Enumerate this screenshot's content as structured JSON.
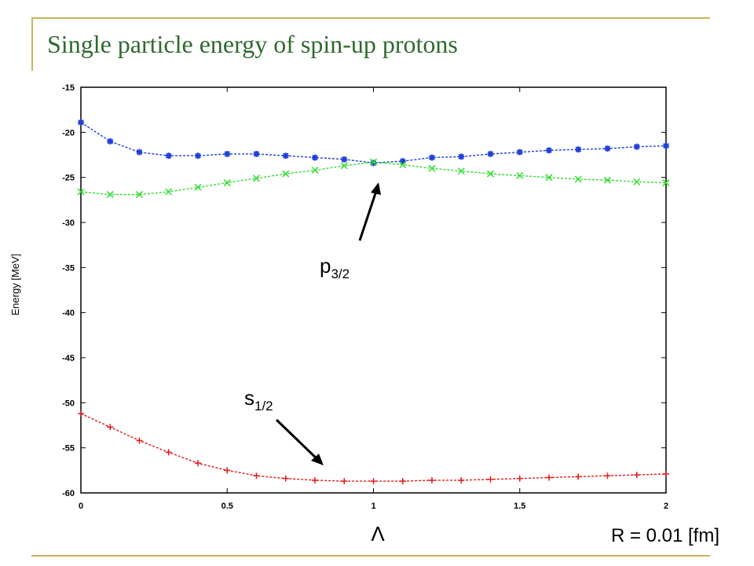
{
  "slide": {
    "title": "Single particle energy of spin-up protons",
    "r_label": "R = 0.01 [fm]"
  },
  "colors": {
    "rule": "#c9b458",
    "title": "#2e6a2e",
    "s_half": "#e41a1c",
    "p_blue": "#1f3fdc",
    "p_green": "#33dd33"
  },
  "chart_data": {
    "type": "line",
    "xlabel": "Λ",
    "ylabel": "Energy [MeV]",
    "xlim": [
      0,
      2
    ],
    "ylim": [
      -60,
      -15
    ],
    "xticks": [
      "0",
      "0.5",
      "1",
      "1.5",
      "2"
    ],
    "yticks": [
      "-15",
      "-20",
      "-25",
      "-30",
      "-35",
      "-40",
      "-45",
      "-50",
      "-55",
      "-60"
    ],
    "grid": false,
    "legend": "none",
    "x": [
      0,
      0.1,
      0.2,
      0.3,
      0.4,
      0.5,
      0.6,
      0.7,
      0.8,
      0.9,
      1.0,
      1.1,
      1.2,
      1.3,
      1.4,
      1.5,
      1.6,
      1.7,
      1.8,
      1.9,
      2.0
    ],
    "series": [
      {
        "color": "#1f3fdc",
        "marker": "star",
        "values": [
          -18.9,
          -21.0,
          -22.2,
          -22.6,
          -22.6,
          -22.4,
          -22.4,
          -22.6,
          -22.8,
          -23.0,
          -23.4,
          -23.2,
          -22.8,
          -22.7,
          -22.4,
          -22.2,
          -22.0,
          -21.9,
          -21.8,
          -21.6,
          -21.5
        ]
      },
      {
        "color": "#33dd33",
        "marker": "x",
        "values": [
          -26.6,
          -26.9,
          -26.9,
          -26.6,
          -26.1,
          -25.6,
          -25.1,
          -24.6,
          -24.2,
          -23.7,
          -23.3,
          -23.6,
          -24.0,
          -24.3,
          -24.6,
          -24.8,
          -25.0,
          -25.2,
          -25.3,
          -25.5,
          -25.6
        ]
      },
      {
        "color": "#e41a1c",
        "marker": "plus",
        "values": [
          -51.2,
          -52.7,
          -54.2,
          -55.5,
          -56.7,
          -57.5,
          -58.1,
          -58.4,
          -58.6,
          -58.7,
          -58.7,
          -58.7,
          -58.6,
          -58.6,
          -58.5,
          -58.4,
          -58.3,
          -58.2,
          -58.1,
          -58.0,
          -57.9
        ]
      }
    ],
    "annotations": [
      {
        "main": "p",
        "sub": "3/2"
      },
      {
        "main": "s",
        "sub": "1/2"
      }
    ]
  }
}
